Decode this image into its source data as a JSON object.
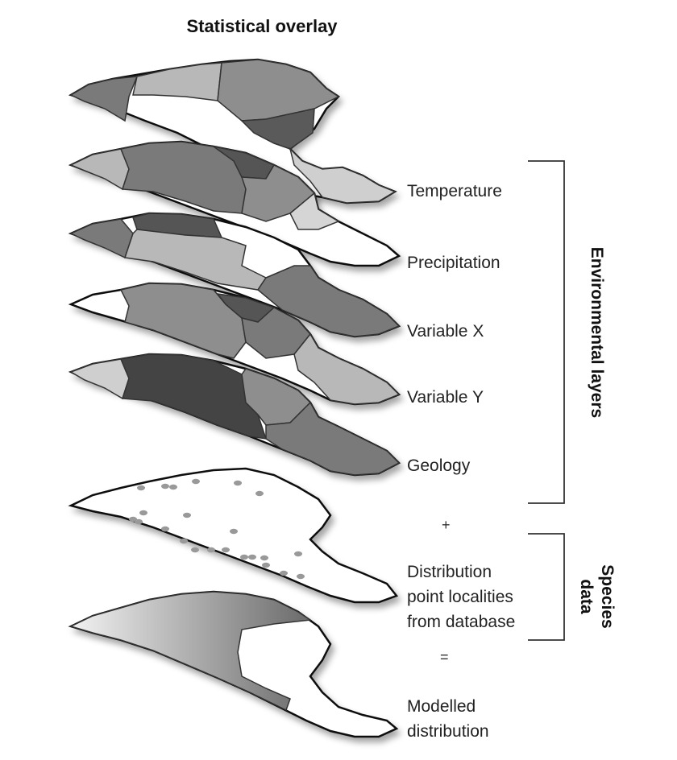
{
  "title": "Statistical overlay",
  "layers": [
    {
      "label": "Temperature"
    },
    {
      "label": "Precipitation"
    },
    {
      "label": "Variable X"
    },
    {
      "label": "Variable Y"
    },
    {
      "label": "Geology"
    }
  ],
  "plus": "+",
  "equals": "=",
  "species_label": "Distribution point localities from database",
  "species_label_lines": [
    "Distribution",
    "point localities",
    "from database"
  ],
  "model_label_lines": [
    "Modelled",
    "distribution"
  ],
  "bracket_env": "Environmental layers",
  "bracket_species_lines": [
    "Species",
    "data"
  ],
  "colors": {
    "outline": "#111111",
    "dark": "#555555",
    "mid": "#8a8a8a",
    "light": "#bdbdbd",
    "white": "#ffffff",
    "point": "#999999"
  }
}
